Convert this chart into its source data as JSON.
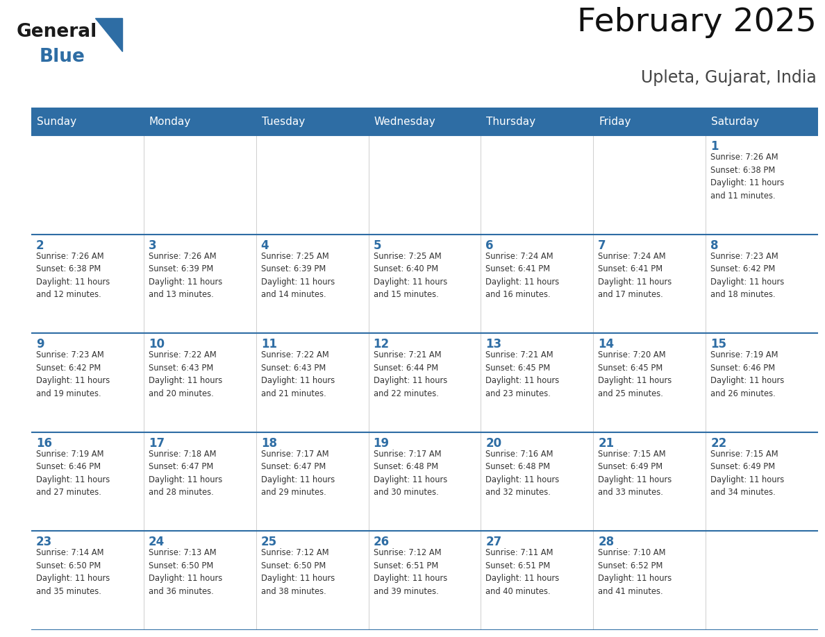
{
  "title": "February 2025",
  "subtitle": "Upleta, Gujarat, India",
  "header_bg": "#2E6DA4",
  "header_text_color": "#FFFFFF",
  "cell_bg": "#FFFFFF",
  "cell_border_color": "#2E6DA4",
  "day_number_color": "#2E6DA4",
  "info_text_color": "#333333",
  "days_of_week": [
    "Sunday",
    "Monday",
    "Tuesday",
    "Wednesday",
    "Thursday",
    "Friday",
    "Saturday"
  ],
  "weeks": [
    [
      {
        "day": null,
        "info": null
      },
      {
        "day": null,
        "info": null
      },
      {
        "day": null,
        "info": null
      },
      {
        "day": null,
        "info": null
      },
      {
        "day": null,
        "info": null
      },
      {
        "day": null,
        "info": null
      },
      {
        "day": 1,
        "info": "Sunrise: 7:26 AM\nSunset: 6:38 PM\nDaylight: 11 hours\nand 11 minutes."
      }
    ],
    [
      {
        "day": 2,
        "info": "Sunrise: 7:26 AM\nSunset: 6:38 PM\nDaylight: 11 hours\nand 12 minutes."
      },
      {
        "day": 3,
        "info": "Sunrise: 7:26 AM\nSunset: 6:39 PM\nDaylight: 11 hours\nand 13 minutes."
      },
      {
        "day": 4,
        "info": "Sunrise: 7:25 AM\nSunset: 6:39 PM\nDaylight: 11 hours\nand 14 minutes."
      },
      {
        "day": 5,
        "info": "Sunrise: 7:25 AM\nSunset: 6:40 PM\nDaylight: 11 hours\nand 15 minutes."
      },
      {
        "day": 6,
        "info": "Sunrise: 7:24 AM\nSunset: 6:41 PM\nDaylight: 11 hours\nand 16 minutes."
      },
      {
        "day": 7,
        "info": "Sunrise: 7:24 AM\nSunset: 6:41 PM\nDaylight: 11 hours\nand 17 minutes."
      },
      {
        "day": 8,
        "info": "Sunrise: 7:23 AM\nSunset: 6:42 PM\nDaylight: 11 hours\nand 18 minutes."
      }
    ],
    [
      {
        "day": 9,
        "info": "Sunrise: 7:23 AM\nSunset: 6:42 PM\nDaylight: 11 hours\nand 19 minutes."
      },
      {
        "day": 10,
        "info": "Sunrise: 7:22 AM\nSunset: 6:43 PM\nDaylight: 11 hours\nand 20 minutes."
      },
      {
        "day": 11,
        "info": "Sunrise: 7:22 AM\nSunset: 6:43 PM\nDaylight: 11 hours\nand 21 minutes."
      },
      {
        "day": 12,
        "info": "Sunrise: 7:21 AM\nSunset: 6:44 PM\nDaylight: 11 hours\nand 22 minutes."
      },
      {
        "day": 13,
        "info": "Sunrise: 7:21 AM\nSunset: 6:45 PM\nDaylight: 11 hours\nand 23 minutes."
      },
      {
        "day": 14,
        "info": "Sunrise: 7:20 AM\nSunset: 6:45 PM\nDaylight: 11 hours\nand 25 minutes."
      },
      {
        "day": 15,
        "info": "Sunrise: 7:19 AM\nSunset: 6:46 PM\nDaylight: 11 hours\nand 26 minutes."
      }
    ],
    [
      {
        "day": 16,
        "info": "Sunrise: 7:19 AM\nSunset: 6:46 PM\nDaylight: 11 hours\nand 27 minutes."
      },
      {
        "day": 17,
        "info": "Sunrise: 7:18 AM\nSunset: 6:47 PM\nDaylight: 11 hours\nand 28 minutes."
      },
      {
        "day": 18,
        "info": "Sunrise: 7:17 AM\nSunset: 6:47 PM\nDaylight: 11 hours\nand 29 minutes."
      },
      {
        "day": 19,
        "info": "Sunrise: 7:17 AM\nSunset: 6:48 PM\nDaylight: 11 hours\nand 30 minutes."
      },
      {
        "day": 20,
        "info": "Sunrise: 7:16 AM\nSunset: 6:48 PM\nDaylight: 11 hours\nand 32 minutes."
      },
      {
        "day": 21,
        "info": "Sunrise: 7:15 AM\nSunset: 6:49 PM\nDaylight: 11 hours\nand 33 minutes."
      },
      {
        "day": 22,
        "info": "Sunrise: 7:15 AM\nSunset: 6:49 PM\nDaylight: 11 hours\nand 34 minutes."
      }
    ],
    [
      {
        "day": 23,
        "info": "Sunrise: 7:14 AM\nSunset: 6:50 PM\nDaylight: 11 hours\nand 35 minutes."
      },
      {
        "day": 24,
        "info": "Sunrise: 7:13 AM\nSunset: 6:50 PM\nDaylight: 11 hours\nand 36 minutes."
      },
      {
        "day": 25,
        "info": "Sunrise: 7:12 AM\nSunset: 6:50 PM\nDaylight: 11 hours\nand 38 minutes."
      },
      {
        "day": 26,
        "info": "Sunrise: 7:12 AM\nSunset: 6:51 PM\nDaylight: 11 hours\nand 39 minutes."
      },
      {
        "day": 27,
        "info": "Sunrise: 7:11 AM\nSunset: 6:51 PM\nDaylight: 11 hours\nand 40 minutes."
      },
      {
        "day": 28,
        "info": "Sunrise: 7:10 AM\nSunset: 6:52 PM\nDaylight: 11 hours\nand 41 minutes."
      },
      {
        "day": null,
        "info": null
      }
    ]
  ],
  "logo_triangle_color": "#2E6DA4",
  "fig_width": 11.88,
  "fig_height": 9.18,
  "dpi": 100
}
